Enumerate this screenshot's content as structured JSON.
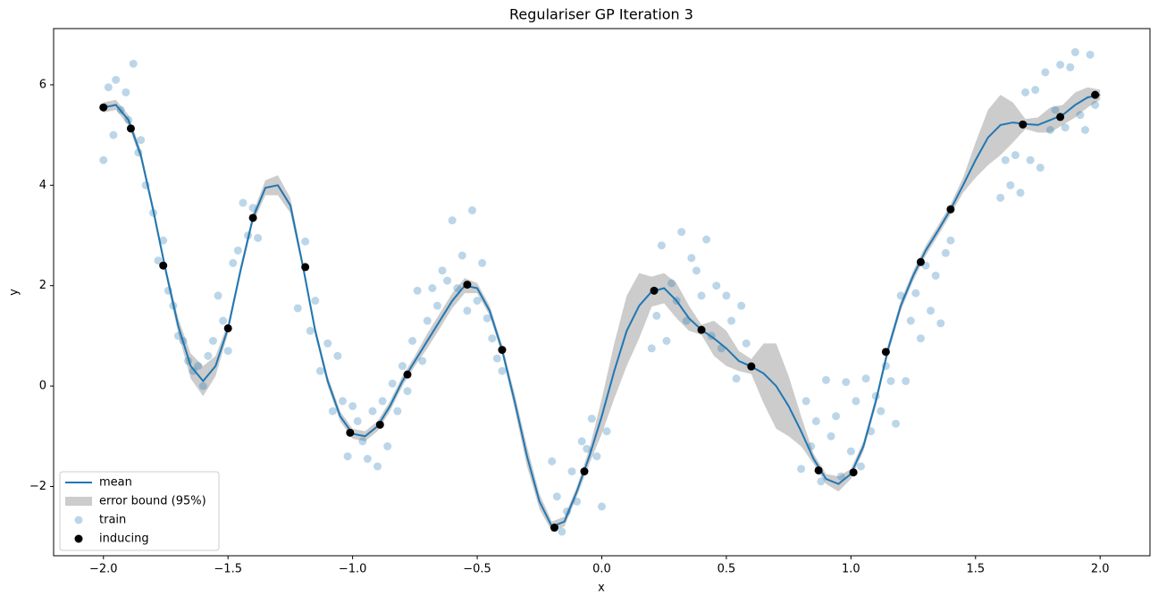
{
  "chart_data": {
    "type": "gp",
    "title": "Regulariser GP Iteration 3",
    "xlabel": "x",
    "ylabel": "y",
    "xlim": [
      -2.2,
      2.2
    ],
    "ylim": [
      -3.38,
      7.12
    ],
    "xticks": [
      {
        "value": -2,
        "label": "−2.0"
      },
      {
        "value": -1.5,
        "label": "−1.5"
      },
      {
        "value": -1,
        "label": "−1.0"
      },
      {
        "value": -0.5,
        "label": "−0.5"
      },
      {
        "value": 0,
        "label": "0.0"
      },
      0.5,
      {
        "value": 1,
        "label": "1.0"
      },
      1.5,
      {
        "value": 2,
        "label": "2.0"
      }
    ],
    "yticks": [
      {
        "value": -2,
        "label": "−2"
      },
      0,
      2,
      4,
      6
    ],
    "legend": "lower left",
    "x": [
      -2.0,
      -1.95,
      -1.9,
      -1.85,
      -1.8,
      -1.75,
      -1.7,
      -1.65,
      -1.6,
      -1.55,
      -1.5,
      -1.45,
      -1.4,
      -1.35,
      -1.3,
      -1.25,
      -1.2,
      -1.15,
      -1.1,
      -1.05,
      -1.0,
      -0.95,
      -0.9,
      -0.85,
      -0.8,
      -0.75,
      -0.7,
      -0.65,
      -0.6,
      -0.55,
      -0.5,
      -0.45,
      -0.4,
      -0.35,
      -0.3,
      -0.25,
      -0.2,
      -0.15,
      -0.1,
      -0.05,
      0.0,
      0.05,
      0.1,
      0.15,
      0.2,
      0.25,
      0.3,
      0.35,
      0.4,
      0.45,
      0.5,
      0.55,
      0.6,
      0.65,
      0.7,
      0.75,
      0.8,
      0.85,
      0.9,
      0.95,
      1.0,
      1.05,
      1.1,
      1.15,
      1.2,
      1.25,
      1.3,
      1.35,
      1.4,
      1.45,
      1.5,
      1.55,
      1.6,
      1.65,
      1.7,
      1.75,
      1.8,
      1.85,
      1.9,
      1.95,
      2.0
    ],
    "series": [
      {
        "name": "mean",
        "kind": "line",
        "color": "#1f77b4",
        "values": [
          5.55,
          5.6,
          5.3,
          4.6,
          3.5,
          2.3,
          1.2,
          0.4,
          0.1,
          0.4,
          1.15,
          2.3,
          3.35,
          3.95,
          4.0,
          3.6,
          2.4,
          1.1,
          0.1,
          -0.6,
          -0.95,
          -1.0,
          -0.8,
          -0.4,
          0.1,
          0.5,
          0.9,
          1.3,
          1.7,
          2.0,
          1.95,
          1.5,
          0.72,
          -0.3,
          -1.4,
          -2.3,
          -2.8,
          -2.7,
          -2.1,
          -1.4,
          -0.6,
          0.3,
          1.1,
          1.6,
          1.88,
          1.95,
          1.7,
          1.35,
          1.12,
          0.95,
          0.75,
          0.5,
          0.39,
          0.25,
          0.0,
          -0.4,
          -0.9,
          -1.45,
          -1.85,
          -1.95,
          -1.75,
          -1.2,
          -0.3,
          0.75,
          1.6,
          2.2,
          2.7,
          3.1,
          3.52,
          4.0,
          4.5,
          4.95,
          5.2,
          5.25,
          5.22,
          5.2,
          5.3,
          5.4,
          5.6,
          5.75,
          5.8
        ]
      },
      {
        "name": "error bound (95%)",
        "kind": "band",
        "color": "#cccccc",
        "lower": [
          5.45,
          5.5,
          5.2,
          4.5,
          3.4,
          2.2,
          1.05,
          0.15,
          -0.2,
          0.2,
          1.05,
          2.2,
          3.25,
          3.8,
          3.8,
          3.45,
          2.3,
          1.0,
          0.0,
          -0.7,
          -1.05,
          -1.1,
          -0.9,
          -0.5,
          0.0,
          0.4,
          0.75,
          1.15,
          1.55,
          1.85,
          1.85,
          1.4,
          0.62,
          -0.45,
          -1.6,
          -2.45,
          -2.9,
          -2.8,
          -2.2,
          -1.55,
          -0.95,
          -0.25,
          0.4,
          0.95,
          1.58,
          1.65,
          1.35,
          1.1,
          1.02,
          0.6,
          0.4,
          0.3,
          0.24,
          -0.35,
          -0.85,
          -1.0,
          -1.2,
          -1.55,
          -1.95,
          -2.1,
          -1.85,
          -1.3,
          -0.4,
          0.65,
          1.5,
          2.1,
          2.6,
          3.0,
          3.42,
          3.85,
          4.15,
          4.4,
          4.6,
          4.85,
          5.12,
          5.05,
          5.05,
          5.2,
          5.35,
          5.55,
          5.7
        ],
        "upper": [
          5.65,
          5.7,
          5.4,
          4.7,
          3.6,
          2.4,
          1.35,
          0.65,
          0.4,
          0.6,
          1.25,
          2.4,
          3.45,
          4.1,
          4.2,
          3.75,
          2.5,
          1.2,
          0.2,
          -0.5,
          -0.85,
          -0.9,
          -0.7,
          -0.3,
          0.2,
          0.6,
          1.05,
          1.45,
          1.85,
          2.15,
          2.05,
          1.6,
          0.82,
          -0.15,
          -1.2,
          -2.15,
          -2.7,
          -2.6,
          -2.0,
          -1.25,
          -0.25,
          0.85,
          1.8,
          2.25,
          2.18,
          2.25,
          2.05,
          1.6,
          1.22,
          1.3,
          1.1,
          0.7,
          0.54,
          0.85,
          0.85,
          0.2,
          -0.6,
          -1.35,
          -1.75,
          -1.8,
          -1.65,
          -1.1,
          -0.2,
          0.85,
          1.7,
          2.3,
          2.8,
          3.2,
          3.62,
          4.15,
          4.85,
          5.5,
          5.8,
          5.65,
          5.32,
          5.35,
          5.55,
          5.6,
          5.85,
          5.95,
          5.9
        ]
      },
      {
        "name": "train",
        "kind": "scatter",
        "color": "#1f77b4",
        "opacity": 0.3,
        "x": [
          -2.0,
          -1.98,
          -1.96,
          -1.95,
          -1.93,
          -1.91,
          -1.9,
          -1.88,
          -1.86,
          -1.85,
          -1.83,
          -1.8,
          -1.78,
          -1.76,
          -1.74,
          -1.72,
          -1.7,
          -1.68,
          -1.66,
          -1.64,
          -1.62,
          -1.6,
          -1.58,
          -1.56,
          -1.54,
          -1.52,
          -1.5,
          -1.48,
          -1.46,
          -1.44,
          -1.42,
          -1.4,
          -1.38,
          -1.22,
          -1.19,
          -1.17,
          -1.15,
          -1.13,
          -1.1,
          -1.08,
          -1.06,
          -1.04,
          -1.02,
          -1.0,
          -0.98,
          -0.96,
          -0.94,
          -0.92,
          -0.9,
          -0.88,
          -0.86,
          -0.84,
          -0.82,
          -0.8,
          -0.78,
          -0.76,
          -0.74,
          -0.72,
          -0.7,
          -0.68,
          -0.66,
          -0.64,
          -0.62,
          -0.6,
          -0.58,
          -0.56,
          -0.54,
          -0.52,
          -0.5,
          -0.48,
          -0.46,
          -0.44,
          -0.42,
          -0.4,
          -0.2,
          -0.18,
          -0.16,
          -0.14,
          -0.12,
          -0.1,
          -0.08,
          -0.06,
          -0.04,
          -0.02,
          0.0,
          0.02,
          0.2,
          0.22,
          0.24,
          0.26,
          0.28,
          0.3,
          0.32,
          0.34,
          0.36,
          0.38,
          0.4,
          0.42,
          0.44,
          0.46,
          0.48,
          0.5,
          0.52,
          0.54,
          0.56,
          0.58,
          0.6,
          0.8,
          0.82,
          0.84,
          0.86,
          0.88,
          0.9,
          0.92,
          0.94,
          0.96,
          0.98,
          1.0,
          1.02,
          1.04,
          1.06,
          1.08,
          1.1,
          1.12,
          1.14,
          1.16,
          1.18,
          1.2,
          1.22,
          1.24,
          1.26,
          1.28,
          1.3,
          1.32,
          1.34,
          1.36,
          1.38,
          1.4,
          1.6,
          1.62,
          1.64,
          1.66,
          1.68,
          1.7,
          1.72,
          1.74,
          1.76,
          1.78,
          1.8,
          1.82,
          1.84,
          1.86,
          1.88,
          1.9,
          1.92,
          1.94,
          1.96,
          1.98
        ],
        "values": [
          4.5,
          5.95,
          5.0,
          6.1,
          5.5,
          5.85,
          5.3,
          6.42,
          4.65,
          4.9,
          4.0,
          3.45,
          2.5,
          2.9,
          1.9,
          1.6,
          1.0,
          0.9,
          0.5,
          0.3,
          0.4,
          0.0,
          0.6,
          0.9,
          1.8,
          1.3,
          0.7,
          2.45,
          2.7,
          3.65,
          3.0,
          3.55,
          2.95,
          1.55,
          2.88,
          1.1,
          1.7,
          0.3,
          0.85,
          -0.5,
          0.6,
          -0.3,
          -1.4,
          -0.4,
          -0.7,
          -1.1,
          -1.45,
          -0.5,
          -1.6,
          -0.3,
          -1.2,
          0.05,
          -0.5,
          0.4,
          -0.1,
          0.9,
          1.9,
          0.5,
          1.3,
          1.95,
          1.6,
          2.3,
          2.1,
          3.3,
          1.95,
          2.6,
          1.5,
          3.5,
          1.7,
          2.45,
          1.35,
          0.95,
          0.55,
          0.3,
          -1.5,
          -2.2,
          -2.9,
          -2.5,
          -1.7,
          -2.3,
          -1.1,
          -1.25,
          -0.65,
          -1.4,
          -2.4,
          -0.9,
          0.75,
          1.4,
          2.8,
          0.9,
          2.05,
          1.7,
          3.07,
          1.3,
          2.55,
          2.3,
          1.8,
          2.92,
          1.0,
          2.0,
          0.75,
          1.8,
          1.3,
          0.15,
          1.6,
          0.85,
          0.4,
          -1.65,
          -0.3,
          -1.2,
          -0.7,
          -1.9,
          0.12,
          -1.0,
          -0.6,
          -1.8,
          0.08,
          -1.3,
          -0.3,
          -1.6,
          0.15,
          -0.9,
          -0.2,
          -0.5,
          0.4,
          0.1,
          -0.75,
          1.8,
          0.1,
          1.3,
          1.85,
          0.95,
          2.4,
          1.5,
          2.2,
          1.25,
          2.65,
          2.9,
          3.75,
          4.5,
          4.0,
          4.6,
          3.85,
          5.85,
          4.5,
          5.9,
          4.35,
          6.25,
          5.1,
          5.5,
          6.4,
          5.15,
          6.35,
          6.65,
          5.4,
          5.1,
          6.6,
          5.6
        ]
      },
      {
        "name": "inducing",
        "kind": "scatter",
        "color": "#000000",
        "opacity": 1,
        "x": [
          -2.0,
          -1.89,
          -1.76,
          -1.5,
          -1.4,
          -1.19,
          -1.01,
          -0.89,
          -0.78,
          -0.54,
          -0.4,
          -0.19,
          -0.07,
          0.21,
          0.4,
          0.6,
          0.87,
          1.01,
          1.14,
          1.28,
          1.4,
          1.69,
          1.84,
          1.98
        ],
        "values": [
          5.55,
          5.13,
          2.4,
          1.15,
          3.35,
          2.37,
          -0.93,
          -0.77,
          0.23,
          2.02,
          0.72,
          -2.82,
          -1.7,
          1.9,
          1.12,
          0.39,
          -1.68,
          -1.72,
          0.68,
          2.47,
          3.52,
          5.21,
          5.36,
          5.8
        ]
      }
    ]
  }
}
